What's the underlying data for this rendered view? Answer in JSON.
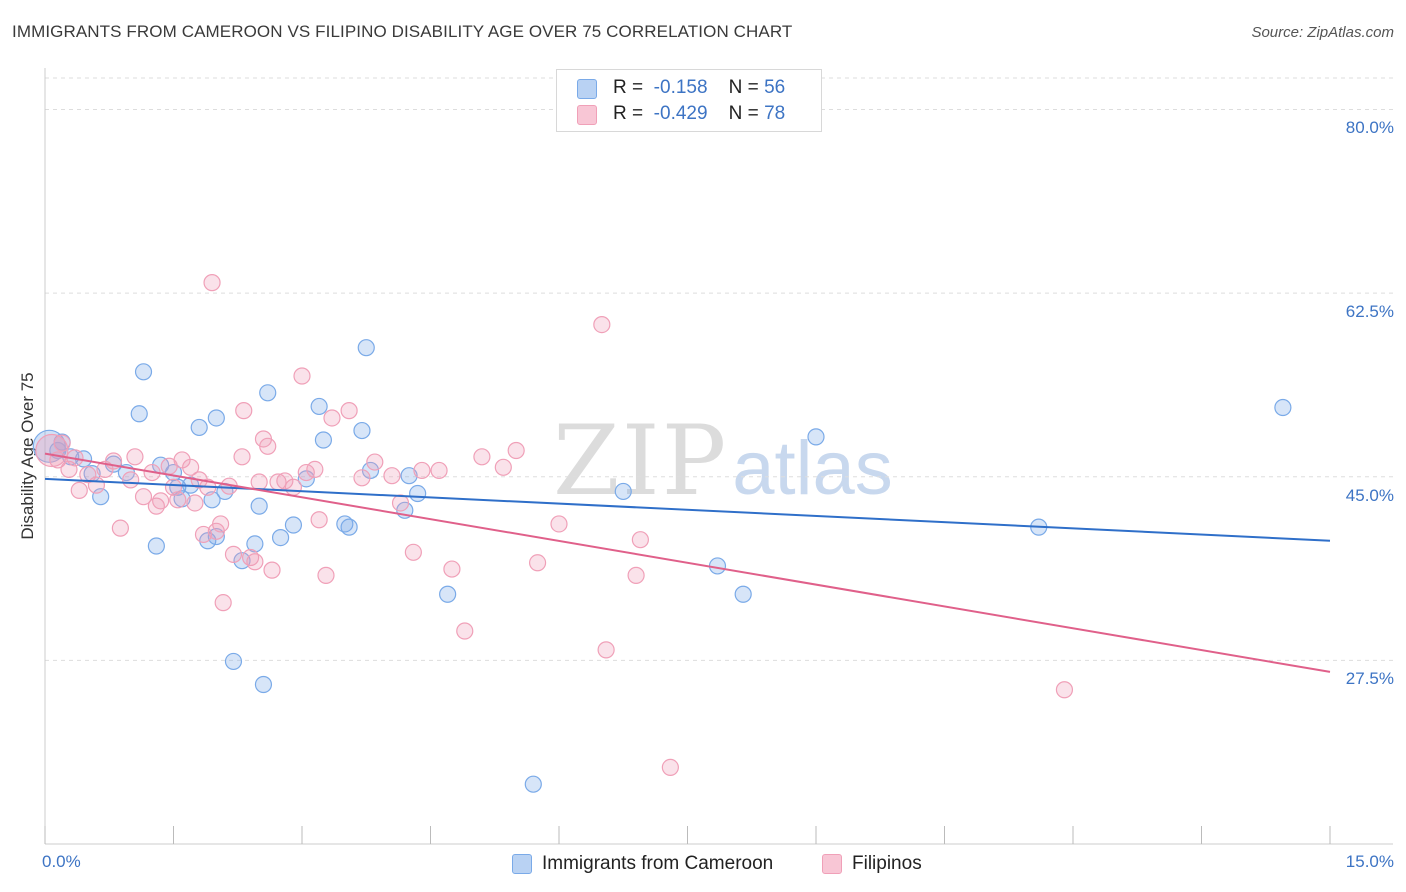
{
  "chart_data": {
    "type": "scatter",
    "title": "IMMIGRANTS FROM CAMEROON VS FILIPINO DISABILITY AGE OVER 75 CORRELATION CHART",
    "source": "Source: ZipAtlas.com",
    "xlabel": "",
    "ylabel": "Disability Age Over 75",
    "xlim": [
      0,
      15
    ],
    "ylim": [
      10,
      83
    ],
    "x_tick_labels": [
      "0.0%",
      "15.0%"
    ],
    "y_ticks": [
      27.5,
      45.0,
      62.5,
      80.0
    ],
    "y_tick_labels": [
      "27.5%",
      "45.0%",
      "62.5%",
      "80.0%"
    ],
    "grid": true,
    "legend_placement": "top-center",
    "watermark": {
      "a": "ZIP",
      "b": "atlas"
    },
    "stats": [
      {
        "r_label": "R =",
        "r_value": "-0.158",
        "n_label": "N =",
        "n_value": "56"
      },
      {
        "r_label": "R =",
        "r_value": "-0.429",
        "n_label": "N =",
        "n_value": "78"
      }
    ],
    "series": [
      {
        "name": "Immigrants from Cameroon",
        "color": "#7aaae8",
        "line_color": "#2f6fc9",
        "trend": [
          [
            0.0,
            44.8
          ],
          [
            15.0,
            38.9
          ]
        ],
        "points": [
          [
            0.05,
            47.9,
            "big"
          ],
          [
            0.15,
            47.5
          ],
          [
            0.2,
            48.3
          ],
          [
            0.3,
            46.9
          ],
          [
            0.45,
            46.7
          ],
          [
            0.55,
            45.3
          ],
          [
            0.65,
            43.1
          ],
          [
            0.8,
            46.2
          ],
          [
            0.95,
            45.4
          ],
          [
            1.1,
            51.0
          ],
          [
            1.15,
            55.0
          ],
          [
            1.3,
            38.4
          ],
          [
            1.35,
            46.1
          ],
          [
            1.5,
            45.4
          ],
          [
            1.55,
            44.0
          ],
          [
            1.6,
            42.9
          ],
          [
            1.7,
            44.2
          ],
          [
            1.8,
            49.7
          ],
          [
            1.9,
            38.9
          ],
          [
            1.95,
            42.8
          ],
          [
            2.0,
            39.3
          ],
          [
            2.0,
            50.6
          ],
          [
            2.1,
            43.6
          ],
          [
            2.2,
            27.4
          ],
          [
            2.3,
            37.0
          ],
          [
            2.45,
            38.6
          ],
          [
            2.5,
            42.2
          ],
          [
            2.55,
            25.2
          ],
          [
            2.6,
            53.0
          ],
          [
            2.75,
            39.2
          ],
          [
            2.9,
            40.4
          ],
          [
            3.05,
            44.8
          ],
          [
            3.2,
            51.7
          ],
          [
            3.25,
            48.5
          ],
          [
            3.5,
            40.5
          ],
          [
            3.55,
            40.2
          ],
          [
            3.7,
            49.4
          ],
          [
            3.75,
            57.3
          ],
          [
            3.8,
            45.6
          ],
          [
            4.2,
            41.8
          ],
          [
            4.25,
            45.1
          ],
          [
            4.35,
            43.4
          ],
          [
            4.7,
            33.8
          ],
          [
            5.7,
            15.7
          ],
          [
            6.75,
            43.6
          ],
          [
            7.85,
            36.5
          ],
          [
            8.15,
            33.8
          ],
          [
            9.0,
            48.8
          ],
          [
            11.6,
            40.2
          ],
          [
            14.45,
            51.6
          ]
        ]
      },
      {
        "name": "Filipinos",
        "color": "#f0a0b8",
        "line_color": "#e0608a",
        "trend": [
          [
            0.0,
            47.2
          ],
          [
            15.0,
            26.4
          ]
        ],
        "points": [
          [
            0.08,
            47.5,
            "big"
          ],
          [
            0.15,
            46.6
          ],
          [
            0.2,
            48.2
          ],
          [
            0.28,
            45.7
          ],
          [
            0.35,
            46.8
          ],
          [
            0.4,
            43.7
          ],
          [
            0.5,
            45.2
          ],
          [
            0.6,
            44.2
          ],
          [
            0.7,
            45.7
          ],
          [
            0.8,
            46.5
          ],
          [
            0.88,
            40.1
          ],
          [
            1.0,
            44.7
          ],
          [
            1.05,
            46.9
          ],
          [
            1.15,
            43.1
          ],
          [
            1.25,
            45.4
          ],
          [
            1.3,
            42.2
          ],
          [
            1.35,
            42.7
          ],
          [
            1.45,
            46.0
          ],
          [
            1.5,
            44.0
          ],
          [
            1.55,
            42.8
          ],
          [
            1.6,
            46.6
          ],
          [
            1.7,
            45.9
          ],
          [
            1.75,
            42.5
          ],
          [
            1.8,
            44.7
          ],
          [
            1.85,
            39.5
          ],
          [
            1.9,
            44.0
          ],
          [
            1.95,
            63.5
          ],
          [
            2.0,
            39.8
          ],
          [
            2.05,
            40.5
          ],
          [
            2.08,
            33.0
          ],
          [
            2.15,
            44.1
          ],
          [
            2.2,
            37.6
          ],
          [
            2.3,
            46.9
          ],
          [
            2.32,
            51.3
          ],
          [
            2.4,
            37.3
          ],
          [
            2.45,
            36.9
          ],
          [
            2.5,
            44.5
          ],
          [
            2.55,
            48.6
          ],
          [
            2.6,
            47.9
          ],
          [
            2.65,
            36.1
          ],
          [
            2.72,
            44.5
          ],
          [
            2.8,
            44.6
          ],
          [
            2.9,
            44.0
          ],
          [
            3.0,
            54.6
          ],
          [
            3.05,
            45.4
          ],
          [
            3.15,
            45.7
          ],
          [
            3.2,
            40.9
          ],
          [
            3.28,
            35.6
          ],
          [
            3.35,
            50.6
          ],
          [
            3.55,
            51.3
          ],
          [
            3.7,
            44.9
          ],
          [
            3.85,
            46.4
          ],
          [
            4.05,
            45.1
          ],
          [
            4.15,
            42.5
          ],
          [
            4.3,
            37.8
          ],
          [
            4.4,
            45.6
          ],
          [
            4.6,
            45.6
          ],
          [
            4.75,
            36.2
          ],
          [
            4.9,
            30.3
          ],
          [
            5.1,
            46.9
          ],
          [
            5.35,
            45.9
          ],
          [
            5.5,
            47.5
          ],
          [
            5.75,
            36.8
          ],
          [
            6.0,
            40.5
          ],
          [
            6.5,
            59.5
          ],
          [
            6.55,
            28.5
          ],
          [
            6.9,
            35.6
          ],
          [
            6.95,
            39.0
          ],
          [
            7.3,
            17.3
          ],
          [
            11.9,
            24.7
          ]
        ]
      }
    ]
  }
}
